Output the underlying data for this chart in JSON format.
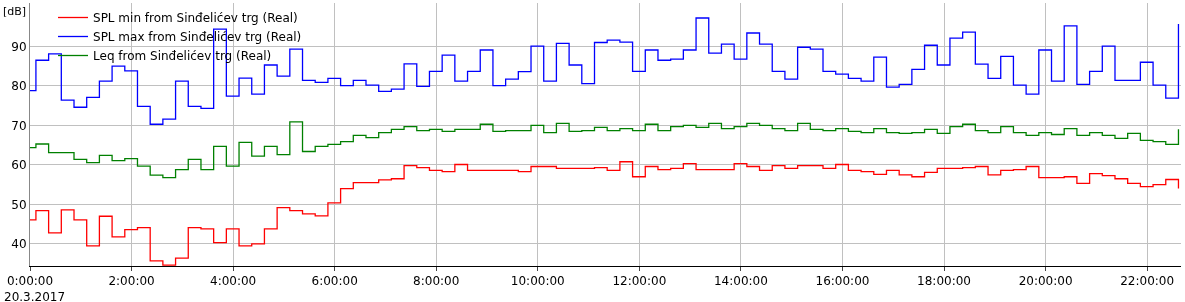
{
  "chart_data": {
    "type": "step",
    "ylabel": "[dB]",
    "annotations": [
      "20.3.2017"
    ],
    "x": [
      "2017-03-20T00:00",
      "2017-03-20T00:07",
      "2017-03-20T00:22",
      "2017-03-20T00:37",
      "2017-03-20T00:52",
      "2017-03-20T01:07",
      "2017-03-20T01:22",
      "2017-03-20T01:37",
      "2017-03-20T01:52",
      "2017-03-20T02:07",
      "2017-03-20T02:22",
      "2017-03-20T02:37",
      "2017-03-20T02:52",
      "2017-03-20T03:07",
      "2017-03-20T03:22",
      "2017-03-20T03:37",
      "2017-03-20T03:52",
      "2017-03-20T04:07",
      "2017-03-20T04:22",
      "2017-03-20T04:37",
      "2017-03-20T04:52",
      "2017-03-20T05:07",
      "2017-03-20T05:22",
      "2017-03-20T05:37",
      "2017-03-20T05:52",
      "2017-03-20T06:07",
      "2017-03-20T06:22",
      "2017-03-20T06:37",
      "2017-03-20T06:52",
      "2017-03-20T07:07",
      "2017-03-20T07:22",
      "2017-03-20T07:37",
      "2017-03-20T07:52",
      "2017-03-20T08:07",
      "2017-03-20T08:22",
      "2017-03-20T08:37",
      "2017-03-20T08:52",
      "2017-03-20T09:07",
      "2017-03-20T09:22",
      "2017-03-20T09:37",
      "2017-03-20T09:52",
      "2017-03-20T10:07",
      "2017-03-20T10:22",
      "2017-03-20T10:37",
      "2017-03-20T10:52",
      "2017-03-20T11:07",
      "2017-03-20T11:22",
      "2017-03-20T11:37",
      "2017-03-20T11:52",
      "2017-03-20T12:07",
      "2017-03-20T12:22",
      "2017-03-20T12:37",
      "2017-03-20T12:52",
      "2017-03-20T13:07",
      "2017-03-20T13:22",
      "2017-03-20T13:37",
      "2017-03-20T13:52",
      "2017-03-20T14:07",
      "2017-03-20T14:22",
      "2017-03-20T14:37",
      "2017-03-20T14:52",
      "2017-03-20T15:07",
      "2017-03-20T15:22",
      "2017-03-20T15:37",
      "2017-03-20T15:52",
      "2017-03-20T16:07",
      "2017-03-20T16:22",
      "2017-03-20T16:37",
      "2017-03-20T16:52",
      "2017-03-20T17:07",
      "2017-03-20T17:22",
      "2017-03-20T17:37",
      "2017-03-20T17:52",
      "2017-03-20T18:07",
      "2017-03-20T18:22",
      "2017-03-20T18:37",
      "2017-03-20T18:52",
      "2017-03-20T19:07",
      "2017-03-20T19:22",
      "2017-03-20T19:37",
      "2017-03-20T19:52",
      "2017-03-20T20:07",
      "2017-03-20T20:22",
      "2017-03-20T20:37",
      "2017-03-20T20:52",
      "2017-03-20T21:07",
      "2017-03-20T21:22",
      "2017-03-20T21:37",
      "2017-03-20T21:52",
      "2017-03-20T22:07",
      "2017-03-20T22:22",
      "2017-03-20T22:37"
    ],
    "series": [
      {
        "name": "SPL min from Sinđelićev trg (Real)",
        "color": "#ff0000",
        "values": [
          46.1,
          48.4,
          42.8,
          48.6,
          46.1,
          39.5,
          47.0,
          41.8,
          43.6,
          44.1,
          35.7,
          34.6,
          36.4,
          44.1,
          43.8,
          40.3,
          43.8,
          39.5,
          40.0,
          43.8,
          49.2,
          48.4,
          47.6,
          47.1,
          50.4,
          54.0,
          55.5,
          55.5,
          56.2,
          56.5,
          59.8,
          59.3,
          58.6,
          58.3,
          60.1,
          58.6,
          58.6,
          58.6,
          58.6,
          58.3,
          59.6,
          59.6,
          59.1,
          59.1,
          59.1,
          59.3,
          58.6,
          60.8,
          57.0,
          59.6,
          58.8,
          59.1,
          60.3,
          58.8,
          58.8,
          58.8,
          60.3,
          59.6,
          58.6,
          59.8,
          59.1,
          59.8,
          59.8,
          59.1,
          60.1,
          58.6,
          58.3,
          57.6,
          58.6,
          57.5,
          57.0,
          58.1,
          59.1,
          59.1,
          59.3,
          59.6,
          57.5,
          58.6,
          58.8,
          59.6,
          56.8,
          56.8,
          57.0,
          55.3,
          57.8,
          57.3,
          56.5,
          55.3,
          54.5,
          55.0,
          56.3,
          54.0
        ]
      },
      {
        "name": "SPL max from Sinđelićev trg (Real)",
        "color": "#0000ff",
        "values": [
          78.8,
          86.5,
          88.1,
          76.4,
          74.6,
          77.1,
          81.2,
          85.0,
          83.8,
          74.8,
          70.3,
          71.6,
          81.2,
          74.8,
          74.3,
          94.4,
          77.4,
          82.0,
          77.9,
          85.3,
          82.5,
          89.3,
          81.4,
          80.9,
          81.9,
          80.1,
          81.4,
          80.2,
          78.6,
          79.2,
          85.6,
          79.9,
          83.7,
          87.8,
          81.2,
          83.7,
          89.1,
          80.1,
          81.7,
          83.6,
          90.1,
          81.2,
          90.8,
          85.3,
          80.6,
          91.0,
          91.6,
          91.1,
          83.7,
          89.1,
          86.5,
          86.8,
          89.1,
          97.2,
          88.3,
          90.6,
          86.8,
          93.4,
          90.6,
          83.7,
          81.7,
          89.8,
          89.3,
          83.7,
          83.0,
          81.9,
          81.2,
          87.3,
          79.7,
          80.4,
          84.2,
          90.3,
          85.3,
          92.1,
          93.6,
          85.5,
          81.9,
          87.5,
          80.2,
          77.9,
          89.1,
          81.2,
          95.2,
          80.4,
          83.7,
          90.1,
          81.4,
          81.4,
          86.0,
          80.2,
          76.9,
          95.7
        ]
      },
      {
        "name": "Leq from Sinđelićev trg (Real)",
        "color": "#008000",
        "values": [
          64.4,
          65.3,
          63.1,
          63.1,
          61.4,
          60.6,
          62.4,
          61.1,
          61.6,
          59.7,
          57.4,
          56.8,
          58.8,
          61.4,
          58.8,
          64.7,
          59.7,
          65.7,
          62.2,
          64.7,
          62.6,
          70.9,
          63.4,
          64.7,
          65.2,
          65.9,
          67.5,
          66.9,
          68.2,
          69.0,
          69.7,
          68.7,
          69.0,
          68.5,
          69.0,
          69.0,
          70.3,
          68.5,
          68.7,
          68.7,
          70.0,
          68.2,
          70.5,
          68.5,
          68.7,
          69.5,
          68.7,
          69.2,
          68.7,
          70.3,
          68.7,
          69.7,
          70.0,
          69.5,
          70.5,
          69.2,
          69.7,
          70.5,
          70.0,
          69.2,
          68.7,
          70.5,
          69.0,
          68.7,
          69.2,
          68.5,
          68.2,
          69.2,
          68.2,
          68.0,
          68.2,
          69.0,
          68.0,
          69.7,
          70.3,
          68.7,
          68.2,
          69.7,
          68.2,
          67.5,
          68.2,
          67.7,
          69.2,
          67.5,
          68.2,
          67.5,
          66.7,
          68.0,
          66.2,
          65.9,
          65.2,
          69.0
        ]
      }
    ],
    "xlim": [
      "2017-03-20T00:00",
      "2017-03-20T22:40"
    ],
    "xticks": [
      {
        "value": "2017-03-20T00:00",
        "label": "0:00:00"
      },
      {
        "value": "2017-03-20T02:00",
        "label": "2:00:00"
      },
      {
        "value": "2017-03-20T04:00",
        "label": "4:00:00"
      },
      {
        "value": "2017-03-20T06:00",
        "label": "6:00:00"
      },
      {
        "value": "2017-03-20T08:00",
        "label": "8:00:00"
      },
      {
        "value": "2017-03-20T10:00",
        "label": "10:00:00"
      },
      {
        "value": "2017-03-20T12:00",
        "label": "12:00:00"
      },
      {
        "value": "2017-03-20T14:00",
        "label": "14:00:00"
      },
      {
        "value": "2017-03-20T16:00",
        "label": "16:00:00"
      },
      {
        "value": "2017-03-20T18:00",
        "label": "18:00:00"
      },
      {
        "value": "2017-03-20T20:00",
        "label": "20:00:00"
      },
      {
        "value": "2017-03-20T22:00",
        "label": "22:00:00"
      }
    ],
    "ylim": [
      34.4,
      101
    ],
    "yticks": [
      40,
      50,
      60,
      70,
      80,
      90
    ],
    "grid": true,
    "legend": "top left",
    "line_style": "solid"
  }
}
